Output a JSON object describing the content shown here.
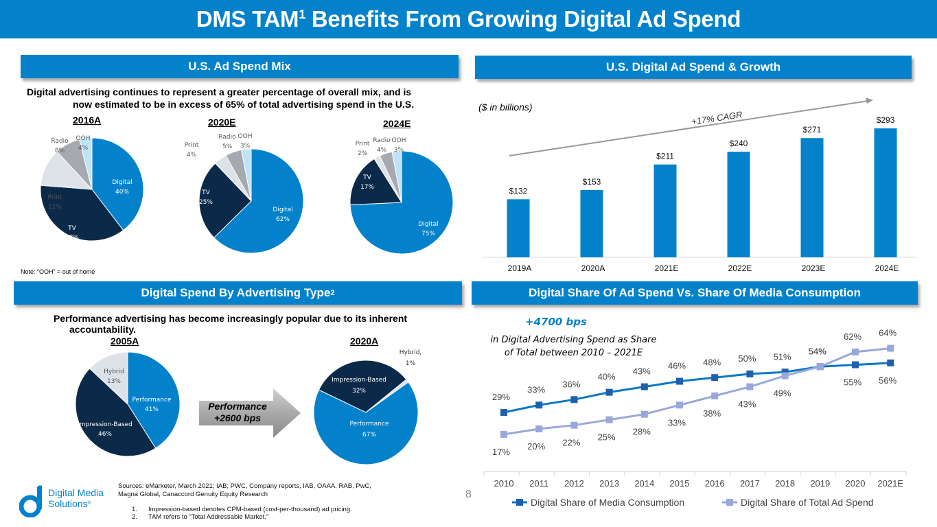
{
  "header": {
    "title_prefix": "DMS TAM",
    "title_sup": "1",
    "title_suffix": " Benefits From Growing Digital Ad Spend"
  },
  "colors": {
    "brand": "#0382CB",
    "navy": "#0B2A4A",
    "light_gray": "#DDE2E8",
    "mid_gray": "#A6AAB0",
    "light_blue": "#BFE3F6",
    "line1": "#0A78C4",
    "line2": "#98A8DA"
  },
  "sections": {
    "ad_spend_mix": {
      "heading": "U.S.  Ad Spend Mix",
      "subtitle_line1": "Digital advertising continues to represent a greater percentage of overall mix, and is",
      "subtitle_line2": "now estimated to be in excess of 65% of total advertising spend in the U.S.",
      "note": "Note: “OOH” = out of home"
    },
    "digital_ad_spend": {
      "heading": "U.S. Digital Ad Spend & Growth",
      "units": "($ in billions)",
      "cagr": "+17% CAGR"
    },
    "spend_by_type": {
      "heading": "Digital Spend By Advertising Type",
      "heading_sup": "2",
      "subtitle_line1": "Performance advertising has become increasingly popular due to its inherent",
      "subtitle_line2": "accountability.",
      "arrow_line1": "Performance",
      "arrow_line2": "+2600 bps"
    },
    "share_vs_consumption": {
      "heading": "Digital Share Of Ad Spend Vs. Share Of Media Consumption",
      "callout_value": "+4700 bps",
      "callout_line1": "in Digital Advertising Spend as Share",
      "callout_line2": "of Total between 2010 – 2021E"
    }
  },
  "chart_data": [
    {
      "type": "pie",
      "title": "2016A",
      "slices": [
        {
          "label": "Digital",
          "value": 40
        },
        {
          "label": "TV",
          "value": 37
        },
        {
          "label": "Print",
          "value": 12
        },
        {
          "label": "Radio",
          "value": 8
        },
        {
          "label": "OOH",
          "value": 4
        }
      ]
    },
    {
      "type": "pie",
      "title": "2020E",
      "slices": [
        {
          "label": "Digital",
          "value": 62
        },
        {
          "label": "TV",
          "value": 25
        },
        {
          "label": "Print",
          "value": 4
        },
        {
          "label": "Radio",
          "value": 5
        },
        {
          "label": "OOH",
          "value": 3
        }
      ]
    },
    {
      "type": "pie",
      "title": "2024E",
      "slices": [
        {
          "label": "Digital",
          "value": 75
        },
        {
          "label": "TV",
          "value": 17
        },
        {
          "label": "Print",
          "value": 2
        },
        {
          "label": "Radio",
          "value": 4
        },
        {
          "label": "OOH",
          "value": 3
        }
      ]
    },
    {
      "type": "bar",
      "title": "U.S. Digital Ad Spend & Growth",
      "ylabel": "$ in billions",
      "categories": [
        "2019A",
        "2020A",
        "2021E",
        "2022E",
        "2023E",
        "2024E"
      ],
      "values": [
        132,
        153,
        211,
        240,
        271,
        293
      ],
      "value_labels": [
        "$132",
        "$153",
        "$211",
        "$240",
        "$271",
        "$293"
      ],
      "annotation": "+17% CAGR",
      "ylim": [
        0,
        320
      ],
      "grid": false
    },
    {
      "type": "pie",
      "title": "2005A",
      "slices": [
        {
          "label": "Performance",
          "value": 41
        },
        {
          "label": "Impression-Based",
          "value": 46
        },
        {
          "label": "Hybrid",
          "value": 13
        }
      ]
    },
    {
      "type": "pie",
      "title": "2020A",
      "slices": [
        {
          "label": "Performance",
          "value": 67
        },
        {
          "label": "Impression-Based",
          "value": 32
        },
        {
          "label": "Hybrid",
          "value": 1
        }
      ]
    },
    {
      "type": "line",
      "title": "Digital Share Of Ad Spend Vs. Share Of Media Consumption",
      "x": [
        "2010",
        "2011",
        "2012",
        "2013",
        "2014",
        "2015",
        "2016",
        "2017",
        "2018",
        "2019",
        "2020",
        "2021E"
      ],
      "series": [
        {
          "name": "Digital Share of Media Consumption",
          "values": [
            29,
            33,
            36,
            40,
            43,
            46,
            48,
            50,
            51,
            54,
            55,
            56
          ]
        },
        {
          "name": "Digital Share of Total Ad Spend",
          "values": [
            17,
            20,
            22,
            25,
            28,
            33,
            38,
            43,
            49,
            54,
            62,
            64
          ]
        }
      ],
      "ylim": [
        0,
        70
      ],
      "grid": false,
      "legend": "bottom"
    }
  ],
  "footer": {
    "sources_line1": "Sources: eMarketer, March 2021; IAB; PWC, Company reports, IAB, OAAA, RAB, PwC,",
    "sources_line2": "Magna Global, Canaccord Genuity Equity Research",
    "footnote1_num": "1.",
    "footnote1": "Impression-based denotes CPM-based (cost-per-thousand) ad pricing.",
    "footnote2_num": "2.",
    "footnote2": "TAM refers to “Total Addressable Market.”",
    "page_number": "8",
    "logo_line1": "Digital Media",
    "logo_line2": "Solutions",
    "logo_mark": "®"
  }
}
